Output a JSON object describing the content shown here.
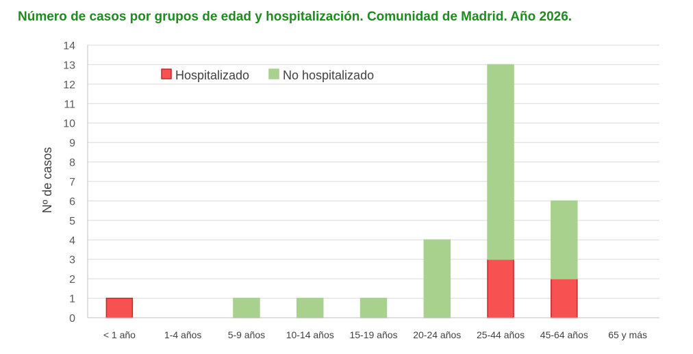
{
  "chart_data": {
    "type": "bar",
    "stacked": true,
    "title": "Número de casos por grupos de edad y hospitalización. Comunidad de Madrid. Año 2026.",
    "xlabel": "",
    "ylabel": "Nº de casos",
    "ylim": [
      0,
      14
    ],
    "yticks": [
      0,
      1,
      2,
      3,
      4,
      5,
      6,
      7,
      8,
      9,
      10,
      11,
      12,
      13,
      14
    ],
    "grid": true,
    "legend_position": "top-left",
    "categories": [
      "< 1 año",
      "1-4 años",
      "5-9 años",
      "10-14 años",
      "15-19 años",
      "20-24 años",
      "25-44 años",
      "45-64 años",
      "65 y más"
    ],
    "series": [
      {
        "name": "Hospitalizado",
        "color": "#f75151",
        "stroke": "#c0282b",
        "values": [
          1,
          0,
          0,
          0,
          0,
          0,
          3,
          2,
          0
        ]
      },
      {
        "name": "No hospitalizado",
        "color": "#a9d18e",
        "stroke": "#a9d18e",
        "values": [
          0,
          0,
          1,
          1,
          1,
          4,
          10,
          4,
          0
        ]
      }
    ]
  }
}
